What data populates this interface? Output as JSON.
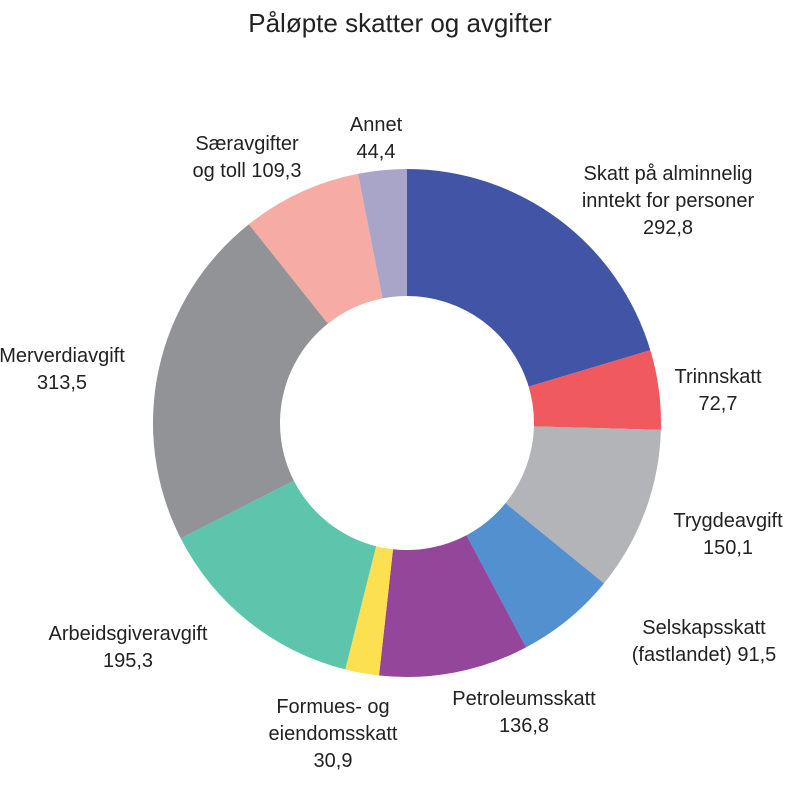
{
  "chart_data": {
    "type": "pie",
    "title": "Påløpte skatter og avgifter",
    "slices": [
      {
        "lines": [
          "Skatt på alminnelig",
          "inntekt for personer"
        ],
        "value": 292.8,
        "value_label": "292,8",
        "color": "#4254a6"
      },
      {
        "lines": [
          "Trinnskatt"
        ],
        "value": 72.7,
        "value_label": "72,7",
        "color": "#f0595e"
      },
      {
        "lines": [
          "Trygdeavgift"
        ],
        "value": 150.1,
        "value_label": "150,1",
        "color": "#b3b4b7"
      },
      {
        "lines": [
          "Selskapsskatt"
        ],
        "value": 91.5,
        "value_label": "(fastlandet) 91,5",
        "color": "#5290cf"
      },
      {
        "lines": [
          "Petroleumsskatt"
        ],
        "value": 136.8,
        "value_label": "136,8",
        "color": "#93469a"
      },
      {
        "lines": [
          "Formues- og",
          "eiendomsskatt"
        ],
        "value": 30.9,
        "value_label": "30,9",
        "color": "#fde04f"
      },
      {
        "lines": [
          "Arbeidsgiveravgift"
        ],
        "value": 195.3,
        "value_label": "195,3",
        "color": "#5ec5ad"
      },
      {
        "lines": [
          "Merverdiavgift"
        ],
        "value": 313.5,
        "value_label": "313,5",
        "color": "#929396"
      },
      {
        "lines": [
          "Særavgifter"
        ],
        "value": 109.3,
        "value_label": "og toll 109,3",
        "color": "#f6aca4"
      },
      {
        "lines": [
          "Annet"
        ],
        "value": 44.4,
        "value_label": "44,4",
        "color": "#a8a5c9"
      }
    ]
  }
}
